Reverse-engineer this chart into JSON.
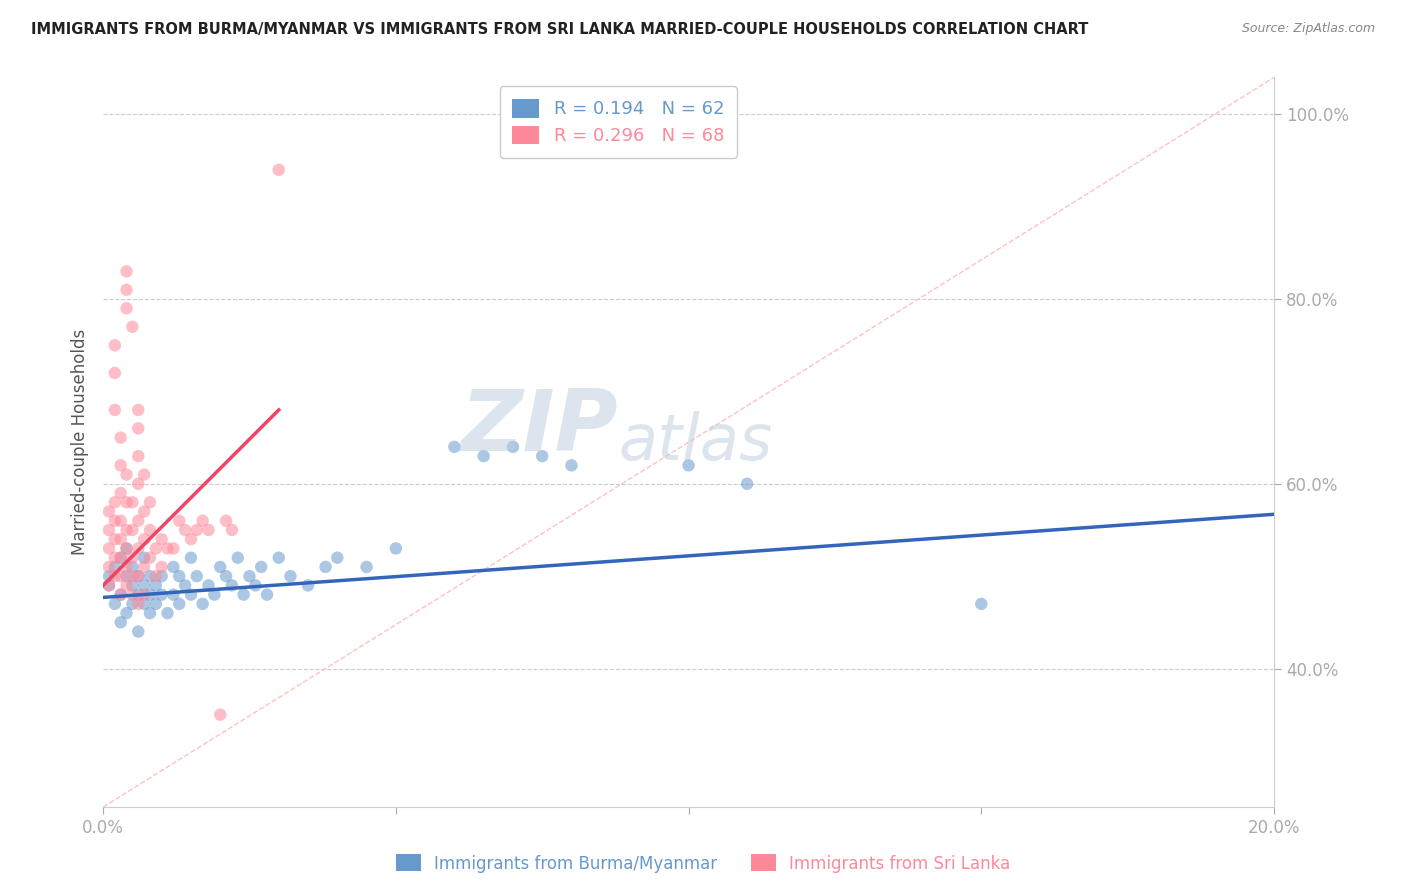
{
  "title": "IMMIGRANTS FROM BURMA/MYANMAR VS IMMIGRANTS FROM SRI LANKA MARRIED-COUPLE HOUSEHOLDS CORRELATION CHART",
  "source": "Source: ZipAtlas.com",
  "ylabel": "Married-couple Households",
  "xlabel_blue": "Immigrants from Burma/Myanmar",
  "xlabel_pink": "Immigrants from Sri Lanka",
  "xlim": [
    0.0,
    0.2
  ],
  "ylim": [
    0.25,
    1.04
  ],
  "yticks": [
    0.4,
    0.6,
    0.8,
    1.0
  ],
  "ytick_labels": [
    "40.0%",
    "60.0%",
    "80.0%",
    "100.0%"
  ],
  "xticks": [
    0.0,
    0.05,
    0.1,
    0.15,
    0.2
  ],
  "xtick_labels": [
    "0.0%",
    "",
    "",
    "",
    "20.0%"
  ],
  "R_blue": 0.194,
  "N_blue": 62,
  "R_pink": 0.296,
  "N_pink": 68,
  "blue_color": "#6699CC",
  "pink_color": "#FF8899",
  "blue_line_color": "#3366BB",
  "pink_line_color": "#EE4466",
  "blue_scatter": [
    [
      0.001,
      0.5
    ],
    [
      0.001,
      0.49
    ],
    [
      0.002,
      0.47
    ],
    [
      0.002,
      0.51
    ],
    [
      0.003,
      0.48
    ],
    [
      0.003,
      0.45
    ],
    [
      0.003,
      0.52
    ],
    [
      0.004,
      0.5
    ],
    [
      0.004,
      0.46
    ],
    [
      0.004,
      0.53
    ],
    [
      0.005,
      0.49
    ],
    [
      0.005,
      0.47
    ],
    [
      0.005,
      0.51
    ],
    [
      0.006,
      0.48
    ],
    [
      0.006,
      0.5
    ],
    [
      0.006,
      0.44
    ],
    [
      0.007,
      0.49
    ],
    [
      0.007,
      0.47
    ],
    [
      0.007,
      0.52
    ],
    [
      0.008,
      0.48
    ],
    [
      0.008,
      0.46
    ],
    [
      0.008,
      0.5
    ],
    [
      0.009,
      0.47
    ],
    [
      0.009,
      0.49
    ],
    [
      0.01,
      0.48
    ],
    [
      0.01,
      0.5
    ],
    [
      0.011,
      0.46
    ],
    [
      0.012,
      0.48
    ],
    [
      0.012,
      0.51
    ],
    [
      0.013,
      0.47
    ],
    [
      0.013,
      0.5
    ],
    [
      0.014,
      0.49
    ],
    [
      0.015,
      0.48
    ],
    [
      0.015,
      0.52
    ],
    [
      0.016,
      0.5
    ],
    [
      0.017,
      0.47
    ],
    [
      0.018,
      0.49
    ],
    [
      0.019,
      0.48
    ],
    [
      0.02,
      0.51
    ],
    [
      0.021,
      0.5
    ],
    [
      0.022,
      0.49
    ],
    [
      0.023,
      0.52
    ],
    [
      0.024,
      0.48
    ],
    [
      0.025,
      0.5
    ],
    [
      0.026,
      0.49
    ],
    [
      0.027,
      0.51
    ],
    [
      0.028,
      0.48
    ],
    [
      0.03,
      0.52
    ],
    [
      0.032,
      0.5
    ],
    [
      0.035,
      0.49
    ],
    [
      0.038,
      0.51
    ],
    [
      0.04,
      0.52
    ],
    [
      0.045,
      0.51
    ],
    [
      0.05,
      0.53
    ],
    [
      0.06,
      0.64
    ],
    [
      0.065,
      0.63
    ],
    [
      0.07,
      0.64
    ],
    [
      0.075,
      0.63
    ],
    [
      0.08,
      0.62
    ],
    [
      0.1,
      0.62
    ],
    [
      0.11,
      0.6
    ],
    [
      0.15,
      0.47
    ]
  ],
  "pink_scatter": [
    [
      0.001,
      0.53
    ],
    [
      0.001,
      0.55
    ],
    [
      0.001,
      0.57
    ],
    [
      0.001,
      0.51
    ],
    [
      0.001,
      0.49
    ],
    [
      0.002,
      0.5
    ],
    [
      0.002,
      0.52
    ],
    [
      0.002,
      0.54
    ],
    [
      0.002,
      0.56
    ],
    [
      0.002,
      0.58
    ],
    [
      0.002,
      0.68
    ],
    [
      0.002,
      0.72
    ],
    [
      0.002,
      0.75
    ],
    [
      0.003,
      0.48
    ],
    [
      0.003,
      0.5
    ],
    [
      0.003,
      0.52
    ],
    [
      0.003,
      0.54
    ],
    [
      0.003,
      0.56
    ],
    [
      0.003,
      0.59
    ],
    [
      0.003,
      0.62
    ],
    [
      0.003,
      0.65
    ],
    [
      0.004,
      0.49
    ],
    [
      0.004,
      0.51
    ],
    [
      0.004,
      0.53
    ],
    [
      0.004,
      0.55
    ],
    [
      0.004,
      0.58
    ],
    [
      0.004,
      0.61
    ],
    [
      0.004,
      0.79
    ],
    [
      0.004,
      0.81
    ],
    [
      0.004,
      0.83
    ],
    [
      0.005,
      0.48
    ],
    [
      0.005,
      0.5
    ],
    [
      0.005,
      0.52
    ],
    [
      0.005,
      0.55
    ],
    [
      0.005,
      0.58
    ],
    [
      0.005,
      0.77
    ],
    [
      0.006,
      0.47
    ],
    [
      0.006,
      0.5
    ],
    [
      0.006,
      0.53
    ],
    [
      0.006,
      0.56
    ],
    [
      0.006,
      0.6
    ],
    [
      0.006,
      0.63
    ],
    [
      0.006,
      0.66
    ],
    [
      0.006,
      0.68
    ],
    [
      0.007,
      0.48
    ],
    [
      0.007,
      0.51
    ],
    [
      0.007,
      0.54
    ],
    [
      0.007,
      0.57
    ],
    [
      0.007,
      0.61
    ],
    [
      0.008,
      0.52
    ],
    [
      0.008,
      0.55
    ],
    [
      0.008,
      0.58
    ],
    [
      0.009,
      0.5
    ],
    [
      0.009,
      0.53
    ],
    [
      0.01,
      0.51
    ],
    [
      0.01,
      0.54
    ],
    [
      0.011,
      0.53
    ],
    [
      0.012,
      0.53
    ],
    [
      0.013,
      0.56
    ],
    [
      0.014,
      0.55
    ],
    [
      0.015,
      0.54
    ],
    [
      0.016,
      0.55
    ],
    [
      0.017,
      0.56
    ],
    [
      0.018,
      0.55
    ],
    [
      0.02,
      0.35
    ],
    [
      0.021,
      0.56
    ],
    [
      0.022,
      0.55
    ],
    [
      0.03,
      0.94
    ]
  ],
  "watermark_line1": "ZIP",
  "watermark_line2": "atlas",
  "watermark_color": "#BBCCDD",
  "diag_line_color": "#FFBBBB",
  "blue_trend_x": [
    0.0,
    0.2
  ],
  "blue_trend_y": [
    0.477,
    0.567
  ],
  "pink_trend_x": [
    0.0,
    0.03
  ],
  "pink_trend_y": [
    0.49,
    0.68
  ]
}
